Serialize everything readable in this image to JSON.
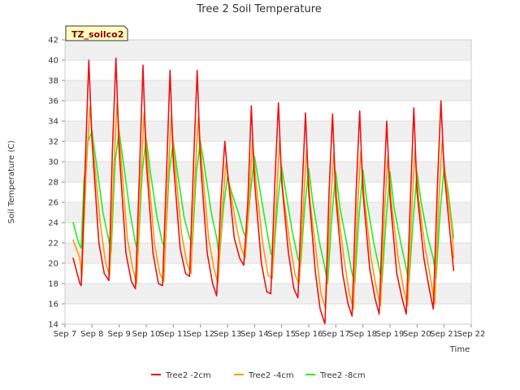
{
  "chart_data": {
    "type": "line",
    "title": "Tree 2 Soil Temperature",
    "xlabel": "Time",
    "ylabel": "Soil Temperature (C)",
    "badge": "TZ_soilco2",
    "ylim": [
      14,
      42
    ],
    "yticks": [
      14,
      16,
      18,
      20,
      22,
      24,
      26,
      28,
      30,
      32,
      34,
      36,
      38,
      40,
      42
    ],
    "xlim": [
      7,
      22
    ],
    "xticks": [
      {
        "v": 7,
        "label": "Sep 7"
      },
      {
        "v": 8,
        "label": "Sep 8"
      },
      {
        "v": 9,
        "label": "Sep 9"
      },
      {
        "v": 10,
        "label": "Sep 10"
      },
      {
        "v": 11,
        "label": "Sep 11"
      },
      {
        "v": 12,
        "label": "Sep 12"
      },
      {
        "v": 13,
        "label": "Sep 13"
      },
      {
        "v": 14,
        "label": "Sep 14"
      },
      {
        "v": 15,
        "label": "Sep 15"
      },
      {
        "v": 16,
        "label": "Sep 16"
      },
      {
        "v": 17,
        "label": "Sep 17"
      },
      {
        "v": 18,
        "label": "Sep 18"
      },
      {
        "v": 19,
        "label": "Sep 19"
      },
      {
        "v": 20,
        "label": "Sep 20"
      },
      {
        "v": 21,
        "label": "Sep 21"
      },
      {
        "v": 22,
        "label": "Sep 22"
      }
    ],
    "grid": "horizontal-bands",
    "legend_position": "bottom",
    "series": [
      {
        "name": "Tree2 -2cm",
        "color": "#ee1111",
        "x": [
          7.3,
          7.55,
          7.6,
          7.75,
          7.88,
          8.0,
          8.25,
          8.45,
          8.62,
          8.75,
          8.88,
          9.0,
          9.25,
          9.45,
          9.6,
          9.75,
          9.88,
          10.0,
          10.25,
          10.45,
          10.6,
          10.75,
          10.88,
          11.0,
          11.25,
          11.45,
          11.6,
          11.75,
          11.88,
          12.0,
          12.25,
          12.45,
          12.6,
          12.75,
          12.9,
          13.0,
          13.25,
          13.45,
          13.6,
          13.75,
          13.88,
          14.0,
          14.25,
          14.45,
          14.6,
          14.75,
          14.88,
          15.0,
          15.25,
          15.45,
          15.6,
          15.75,
          15.88,
          16.0,
          16.25,
          16.42,
          16.6,
          16.75,
          16.88,
          17.0,
          17.25,
          17.45,
          17.6,
          17.75,
          17.88,
          18.0,
          18.25,
          18.45,
          18.6,
          18.75,
          18.88,
          19.0,
          19.25,
          19.45,
          19.6,
          19.75,
          19.88,
          20.0,
          20.25,
          20.45,
          20.6,
          20.75,
          20.88,
          21.0,
          21.25,
          21.35
        ],
        "y": [
          20.5,
          18.0,
          17.8,
          30.0,
          40.0,
          32.0,
          22.0,
          19.0,
          18.3,
          31.0,
          40.2,
          31.0,
          21.0,
          18.2,
          17.5,
          29.0,
          39.5,
          30.0,
          21.0,
          18.0,
          17.8,
          29.0,
          39.0,
          30.0,
          21.5,
          19.0,
          18.7,
          30.0,
          39.0,
          30.0,
          21.0,
          18.0,
          16.8,
          26.0,
          32.0,
          29.0,
          22.5,
          20.5,
          19.8,
          26.0,
          35.5,
          28.0,
          20.0,
          17.2,
          17.0,
          28.0,
          35.8,
          28.0,
          21.0,
          17.5,
          16.6,
          27.0,
          34.8,
          27.0,
          19.0,
          15.5,
          14.0,
          27.0,
          34.7,
          26.5,
          19.0,
          16.0,
          14.8,
          27.0,
          35.0,
          27.0,
          19.5,
          16.5,
          15.0,
          26.0,
          34.0,
          26.5,
          19.0,
          16.5,
          15.0,
          26.0,
          35.3,
          27.0,
          20.5,
          17.5,
          15.5,
          27.5,
          36.0,
          29.0,
          22.0,
          19.3
        ]
      },
      {
        "name": "Tree2 -4cm",
        "color": "#ff9900",
        "x": [
          7.3,
          7.55,
          7.62,
          7.78,
          7.92,
          8.05,
          8.3,
          8.5,
          8.65,
          8.8,
          8.92,
          9.05,
          9.3,
          9.5,
          9.65,
          9.8,
          9.92,
          10.05,
          10.3,
          10.5,
          10.65,
          10.8,
          10.92,
          11.05,
          11.3,
          11.5,
          11.65,
          11.8,
          11.92,
          12.05,
          12.3,
          12.5,
          12.65,
          12.8,
          12.95,
          13.05,
          13.3,
          13.5,
          13.65,
          13.8,
          13.92,
          14.05,
          14.3,
          14.5,
          14.65,
          14.8,
          14.92,
          15.05,
          15.3,
          15.5,
          15.65,
          15.8,
          15.92,
          16.05,
          16.3,
          16.45,
          16.62,
          16.8,
          16.92,
          17.05,
          17.3,
          17.5,
          17.65,
          17.8,
          17.92,
          18.05,
          18.3,
          18.5,
          18.65,
          18.8,
          18.92,
          19.05,
          19.3,
          19.5,
          19.65,
          19.8,
          19.92,
          20.05,
          20.3,
          20.5,
          20.65,
          20.8,
          20.92,
          21.05,
          21.3,
          21.35
        ],
        "y": [
          22.3,
          20.5,
          18.5,
          29.0,
          35.5,
          31.0,
          24.0,
          20.0,
          18.8,
          29.0,
          35.8,
          31.0,
          22.5,
          19.5,
          18.0,
          28.0,
          34.8,
          30.0,
          22.0,
          19.0,
          18.2,
          28.0,
          34.5,
          30.0,
          23.0,
          20.0,
          19.0,
          28.5,
          34.3,
          30.0,
          22.5,
          19.5,
          18.0,
          25.0,
          30.0,
          28.0,
          24.0,
          21.5,
          20.5,
          26.0,
          32.2,
          28.0,
          22.0,
          18.8,
          18.5,
          26.0,
          32.0,
          27.0,
          22.0,
          18.8,
          18.0,
          25.5,
          31.2,
          26.0,
          20.5,
          17.0,
          15.5,
          25.5,
          30.8,
          26.0,
          20.5,
          17.0,
          15.5,
          25.5,
          31.0,
          26.5,
          20.5,
          17.5,
          15.8,
          25.0,
          30.5,
          26.0,
          20.5,
          17.5,
          15.8,
          25.0,
          31.2,
          26.5,
          21.5,
          18.5,
          16.0,
          26.0,
          32.0,
          28.5,
          23.0,
          20.5
        ]
      },
      {
        "name": "Tree2 -8cm",
        "color": "#22ee22",
        "x": [
          7.3,
          7.5,
          7.6,
          7.7,
          7.85,
          8.0,
          8.15,
          8.4,
          8.6,
          8.7,
          8.85,
          9.0,
          9.15,
          9.4,
          9.6,
          9.7,
          9.85,
          10.0,
          10.15,
          10.4,
          10.6,
          10.7,
          10.85,
          11.0,
          11.15,
          11.4,
          11.6,
          11.7,
          11.85,
          12.0,
          12.15,
          12.4,
          12.6,
          12.7,
          12.85,
          13.0,
          13.15,
          13.4,
          13.6,
          13.7,
          13.85,
          14.0,
          14.15,
          14.4,
          14.6,
          14.7,
          14.85,
          15.0,
          15.15,
          15.4,
          15.6,
          15.7,
          15.85,
          16.0,
          16.15,
          16.4,
          16.6,
          16.7,
          16.85,
          17.0,
          17.15,
          17.4,
          17.6,
          17.7,
          17.85,
          18.0,
          18.15,
          18.4,
          18.6,
          18.7,
          18.85,
          19.0,
          19.15,
          19.4,
          19.6,
          19.7,
          19.85,
          20.0,
          20.15,
          20.4,
          20.6,
          20.7,
          20.85,
          21.0,
          21.15,
          21.35
        ],
        "y": [
          24.0,
          22.0,
          21.5,
          28.0,
          32.0,
          33.0,
          30.0,
          25.0,
          22.5,
          21.0,
          30.0,
          33.0,
          30.0,
          25.0,
          22.0,
          21.0,
          29.0,
          32.3,
          29.0,
          24.5,
          22.0,
          21.5,
          29.0,
          32.0,
          29.0,
          24.5,
          22.5,
          21.8,
          29.0,
          32.0,
          29.5,
          25.0,
          22.5,
          20.5,
          25.5,
          28.5,
          27.0,
          25.0,
          23.0,
          22.5,
          27.0,
          30.5,
          28.0,
          24.0,
          21.0,
          20.5,
          26.0,
          29.5,
          27.0,
          23.0,
          20.5,
          19.8,
          25.5,
          29.3,
          26.0,
          22.0,
          19.5,
          18.0,
          24.5,
          29.0,
          25.5,
          22.0,
          19.0,
          18.0,
          24.5,
          29.2,
          26.0,
          22.0,
          19.5,
          18.0,
          24.0,
          29.0,
          25.5,
          22.0,
          19.5,
          18.0,
          24.0,
          29.0,
          26.0,
          22.5,
          20.5,
          18.5,
          25.0,
          29.5,
          27.0,
          22.5
        ]
      }
    ]
  }
}
